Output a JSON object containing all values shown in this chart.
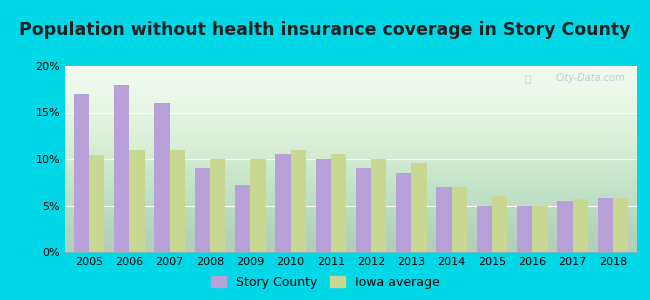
{
  "title": "Population without health insurance coverage in Story County",
  "years": [
    2005,
    2006,
    2007,
    2008,
    2009,
    2010,
    2011,
    2012,
    2013,
    2014,
    2015,
    2016,
    2017,
    2018
  ],
  "story_county": [
    17.0,
    18.0,
    16.0,
    9.0,
    7.2,
    10.5,
    10.0,
    9.0,
    8.5,
    7.0,
    5.0,
    4.9,
    5.5,
    5.8
  ],
  "iowa_average": [
    10.4,
    11.0,
    11.0,
    10.0,
    10.0,
    11.0,
    10.5,
    10.0,
    9.6,
    7.0,
    6.0,
    5.0,
    5.7,
    5.8
  ],
  "story_color": "#b8a0d8",
  "iowa_color": "#c8d890",
  "bg_outer": "#00d8e8",
  "ylim": [
    0,
    20
  ],
  "yticks": [
    0,
    5,
    10,
    15,
    20
  ],
  "legend_story": "Story County",
  "legend_iowa": "Iowa average",
  "title_fontsize": 12.5,
  "watermark": "City-Data.com"
}
